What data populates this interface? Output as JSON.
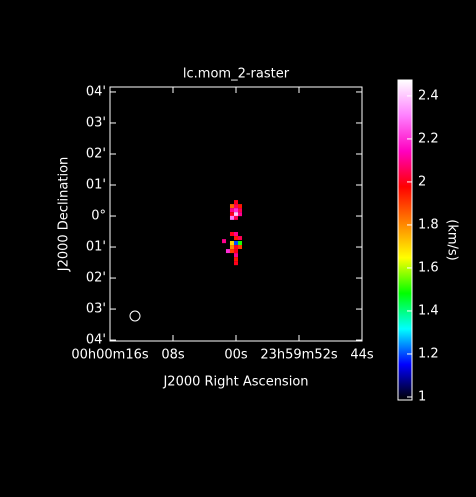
{
  "chart_data": {
    "type": "raster",
    "title": "lc.mom_2-raster",
    "x_label": "J2000 Right Ascension",
    "y_label": "J2000 Declination",
    "colorbar_label": "(km/s)",
    "xlim": [
      16,
      -16
    ],
    "ylim": [
      -4.03,
      4.16
    ],
    "xticks": [
      {
        "value": 16,
        "label": "00h00m16s"
      },
      {
        "value": 8,
        "label": "08s"
      },
      {
        "value": 0,
        "label": "00s"
      },
      {
        "value": -8,
        "label": "23h59m52s"
      },
      {
        "value": -16,
        "label": "44s"
      }
    ],
    "yticks": [
      {
        "value": 4,
        "label": "04'"
      },
      {
        "value": 3,
        "label": "03'"
      },
      {
        "value": 2,
        "label": "02'"
      },
      {
        "value": 1,
        "label": "01'"
      },
      {
        "value": 0,
        "label": "0°"
      },
      {
        "value": -1,
        "label": "01'"
      },
      {
        "value": -2,
        "label": "02'"
      },
      {
        "value": -3,
        "label": "03'"
      },
      {
        "value": -4,
        "label": "04'"
      }
    ],
    "cbar_lim": [
      0.986,
      2.474
    ],
    "cbar_ticks": [
      1,
      1.2,
      1.4,
      1.6,
      1.8,
      2,
      2.2,
      2.4
    ],
    "colormap": [
      "#000000",
      "#0000ff",
      "#00ffff",
      "#00ff00",
      "#ffff00",
      "#ff8000",
      "#ff0000",
      "#ff00c0",
      "#ff80ff",
      "#ffffff"
    ],
    "x": [
      0,
      0.51,
      0,
      -0.51,
      0.51,
      0,
      -0.51,
      0.51,
      0,
      -0.51,
      0,
      0.51,
      0,
      0.51,
      0,
      -0.51,
      1.52,
      0.51,
      0,
      -0.51,
      0.51,
      0,
      -0.51,
      1.02,
      0.51,
      0,
      0,
      0,
      0
    ],
    "y": [
      0.45,
      0.32,
      0.32,
      0.32,
      0.19,
      0.19,
      0.19,
      0.06,
      0.06,
      0.06,
      -0.06,
      -0.06,
      -0.58,
      -0.58,
      -0.71,
      -0.71,
      -0.81,
      -0.87,
      -0.87,
      -0.87,
      -1.0,
      -1.0,
      -1.0,
      -1.13,
      -1.13,
      -1.13,
      -1.26,
      -1.39,
      -1.52
    ],
    "values": [
      2.0,
      1.85,
      2.05,
      1.95,
      2.1,
      2.2,
      2.05,
      2.0,
      2.4,
      2.1,
      2.05,
      2.3,
      2.1,
      2.0,
      1.95,
      2.05,
      2.1,
      1.7,
      1.2,
      1.5,
      1.8,
      2.0,
      1.9,
      2.2,
      1.9,
      2.0,
      2.1,
      1.95,
      2.0
    ]
  }
}
